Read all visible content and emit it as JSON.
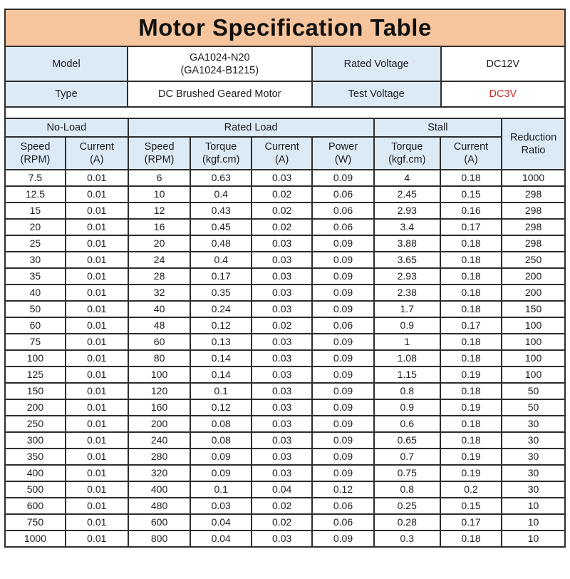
{
  "title": "Motor Specification Table",
  "colors": {
    "title_bg": "#f6c59e",
    "header_bg": "#dceaf6",
    "border": "#2d2d2d",
    "text": "#1c1c1c",
    "accent_red": "#cb2a27"
  },
  "info_rows": [
    {
      "label_a": "Model",
      "value_a_line1": "GA1024-N20",
      "value_a_line2": "(GA1024-B1215)",
      "label_b": "Rated Voltage",
      "value_b": "DC12V"
    },
    {
      "label_a": "Type",
      "value_a_line1": "DC Brushed Geared Motor",
      "value_a_line2": "",
      "label_b": "Test Voltage",
      "value_b": "DC3V"
    }
  ],
  "spec_table": {
    "groups": [
      {
        "label": "No-Load",
        "span": 2
      },
      {
        "label": "Rated Load",
        "span": 4
      },
      {
        "label": "Stall",
        "span": 2
      }
    ],
    "reduction_ratio": {
      "line1": "Reduction",
      "line2": "Ratio"
    },
    "columns": [
      {
        "line1": "Speed",
        "line2": "(RPM)"
      },
      {
        "line1": "Current",
        "line2": "(A)"
      },
      {
        "line1": "Speed",
        "line2": "(RPM)"
      },
      {
        "line1": "Torque",
        "line2": "(kgf.cm)"
      },
      {
        "line1": "Current",
        "line2": "(A)"
      },
      {
        "line1": "Power",
        "line2": "(W)"
      },
      {
        "line1": "Torque",
        "line2": "(kgf.cm)"
      },
      {
        "line1": "Current",
        "line2": "(A)"
      }
    ],
    "rows": [
      [
        "7.5",
        "0.01",
        "6",
        "0.63",
        "0.03",
        "0.09",
        "4",
        "0.18",
        "1000"
      ],
      [
        "12.5",
        "0.01",
        "10",
        "0.4",
        "0.02",
        "0.06",
        "2.45",
        "0.15",
        "298"
      ],
      [
        "15",
        "0.01",
        "12",
        "0.43",
        "0.02",
        "0.06",
        "2.93",
        "0.16",
        "298"
      ],
      [
        "20",
        "0.01",
        "16",
        "0.45",
        "0.02",
        "0.06",
        "3.4",
        "0.17",
        "298"
      ],
      [
        "25",
        "0.01",
        "20",
        "0.48",
        "0.03",
        "0.09",
        "3.88",
        "0.18",
        "298"
      ],
      [
        "30",
        "0.01",
        "24",
        "0.4",
        "0.03",
        "0.09",
        "3.65",
        "0.18",
        "250"
      ],
      [
        "35",
        "0.01",
        "28",
        "0.17",
        "0.03",
        "0.09",
        "2.93",
        "0.18",
        "200"
      ],
      [
        "40",
        "0.01",
        "32",
        "0.35",
        "0.03",
        "0.09",
        "2.38",
        "0.18",
        "200"
      ],
      [
        "50",
        "0.01",
        "40",
        "0.24",
        "0.03",
        "0.09",
        "1.7",
        "0.18",
        "150"
      ],
      [
        "60",
        "0.01",
        "48",
        "0.12",
        "0.02",
        "0.06",
        "0.9",
        "0.17",
        "100"
      ],
      [
        "75",
        "0.01",
        "60",
        "0.13",
        "0.03",
        "0.09",
        "1",
        "0.18",
        "100"
      ],
      [
        "100",
        "0.01",
        "80",
        "0.14",
        "0.03",
        "0.09",
        "1.08",
        "0.18",
        "100"
      ],
      [
        "125",
        "0.01",
        "100",
        "0.14",
        "0.03",
        "0.09",
        "1.15",
        "0.19",
        "100"
      ],
      [
        "150",
        "0.01",
        "120",
        "0.1",
        "0.03",
        "0.09",
        "0.8",
        "0.18",
        "50"
      ],
      [
        "200",
        "0.01",
        "160",
        "0.12",
        "0.03",
        "0.09",
        "0.9",
        "0.19",
        "50"
      ],
      [
        "250",
        "0.01",
        "200",
        "0.08",
        "0.03",
        "0.09",
        "0.6",
        "0.18",
        "30"
      ],
      [
        "300",
        "0.01",
        "240",
        "0.08",
        "0.03",
        "0.09",
        "0.65",
        "0.18",
        "30"
      ],
      [
        "350",
        "0.01",
        "280",
        "0.09",
        "0.03",
        "0.09",
        "0.7",
        "0.19",
        "30"
      ],
      [
        "400",
        "0.01",
        "320",
        "0.09",
        "0.03",
        "0.09",
        "0.75",
        "0.19",
        "30"
      ],
      [
        "500",
        "0.01",
        "400",
        "0.1",
        "0.04",
        "0.12",
        "0.8",
        "0.2",
        "30"
      ],
      [
        "600",
        "0.01",
        "480",
        "0.03",
        "0.02",
        "0.06",
        "0.25",
        "0.15",
        "10"
      ],
      [
        "750",
        "0.01",
        "600",
        "0.04",
        "0.02",
        "0.06",
        "0.28",
        "0.17",
        "10"
      ],
      [
        "1000",
        "0.01",
        "800",
        "0.04",
        "0.03",
        "0.09",
        "0.3",
        "0.18",
        "10"
      ]
    ]
  }
}
